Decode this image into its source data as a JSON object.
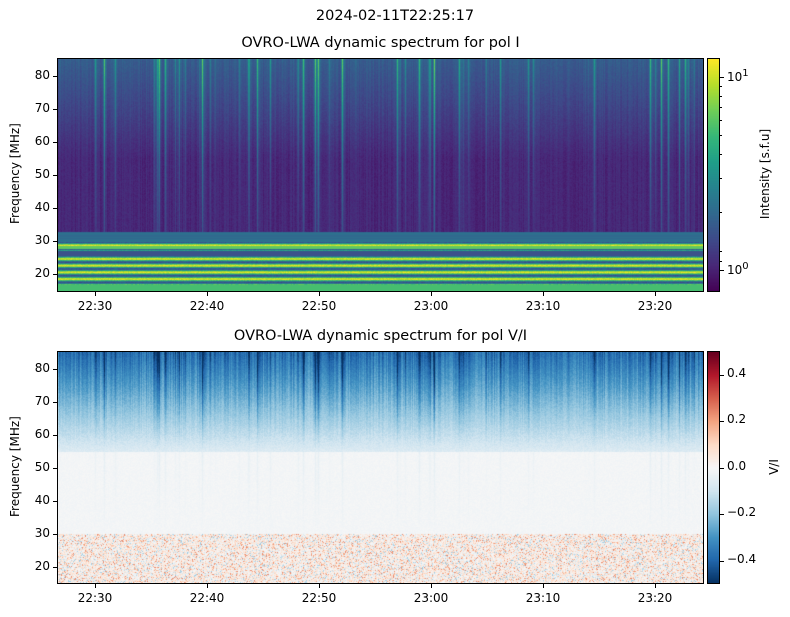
{
  "suptitle": "2024-02-11T22:25:17",
  "chart_data": [
    {
      "type": "heatmap",
      "title": "OVRO-LWA dynamic spectrum for pol I",
      "xlabel": "",
      "ylabel": "Frequency [MHz]",
      "xlim": [
        "22:25",
        "23:25:30"
      ],
      "ylim": [
        15,
        85
      ],
      "xticks": [
        "22:30",
        "22:40",
        "22:50",
        "23:00",
        "23:10",
        "23:20"
      ],
      "yticks": [
        20,
        30,
        40,
        50,
        60,
        70,
        80
      ],
      "colormap": "viridis",
      "colorbar": {
        "label": "Intensity [s.f.u]",
        "scale": "log",
        "range": [
          0.79,
          12.2
        ],
        "ticks": [
          "10^0",
          "10^1"
        ]
      }
    },
    {
      "type": "heatmap",
      "title": "OVRO-LWA dynamic spectrum for pol V/I",
      "xlabel": "",
      "ylabel": "Frequency [MHz]",
      "xlim": [
        "22:25",
        "23:25:30"
      ],
      "ylim": [
        15,
        85
      ],
      "xticks": [
        "22:30",
        "22:40",
        "22:50",
        "23:00",
        "23:10",
        "23:20"
      ],
      "yticks": [
        20,
        30,
        40,
        50,
        60,
        70,
        80
      ],
      "colormap": "RdBu_r",
      "colorbar": {
        "label": "V/I",
        "scale": "linear",
        "range": [
          -0.5,
          0.5
        ],
        "ticks": [
          "0.4",
          "0.2",
          "0.0",
          "−0.2",
          "−0.4"
        ]
      }
    }
  ]
}
